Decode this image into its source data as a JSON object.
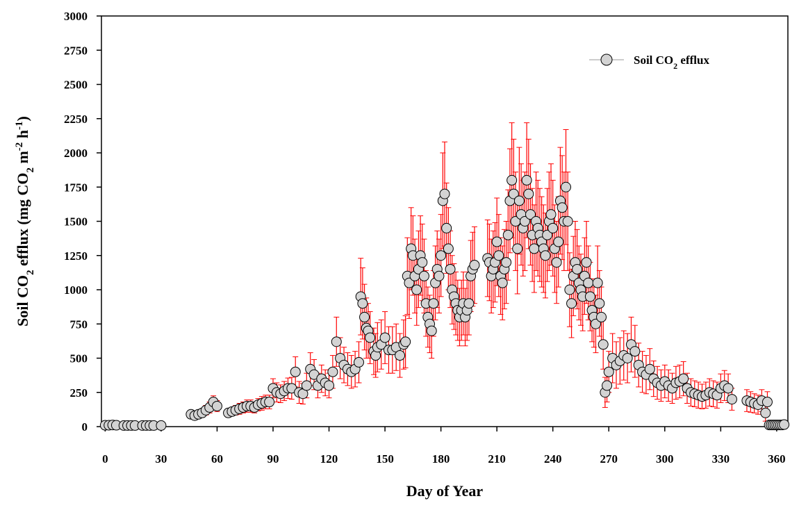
{
  "chart_data": {
    "type": "scatter",
    "title": "",
    "xlabel": "Day of Year",
    "ylabel": {
      "parts": [
        {
          "t": "Soil CO"
        },
        {
          "t": "2",
          "sub": true
        },
        {
          "t": " efflux (mg CO"
        },
        {
          "t": "2",
          "sub": true
        },
        {
          "t": " m"
        },
        {
          "t": "-2",
          "sup": true
        },
        {
          "t": " h"
        },
        {
          "t": "-1",
          "sup": true
        },
        {
          "t": ")"
        }
      ]
    },
    "xlim": [
      -2,
      366
    ],
    "ylim": [
      0,
      3000
    ],
    "xticks": [
      0,
      30,
      60,
      90,
      120,
      150,
      180,
      210,
      240,
      270,
      300,
      330,
      360
    ],
    "yticks": [
      0,
      250,
      500,
      750,
      1000,
      1250,
      1500,
      1750,
      2000,
      2250,
      2500,
      2750,
      3000
    ],
    "grid": false,
    "legend": {
      "placement": "top-right",
      "entries": [
        {
          "parts": [
            {
              "t": "Soil CO"
            },
            {
              "t": "2",
              "sub": true
            },
            {
              "t": " efflux"
            }
          ]
        }
      ]
    },
    "colors": {
      "marker_fill": "#d3d3d3",
      "marker_edge": "#000000",
      "error_bar": "#ff0000"
    },
    "series": [
      {
        "name": "Soil CO2 efflux",
        "x": [
          0,
          2,
          4,
          6,
          10,
          12,
          14,
          16,
          20,
          22,
          24,
          26,
          30,
          46,
          48,
          50,
          52,
          54,
          56,
          58,
          60,
          66,
          68,
          70,
          72,
          74,
          76,
          78,
          80,
          82,
          84,
          86,
          88,
          90,
          92,
          94,
          96,
          98,
          100,
          102,
          104,
          106,
          108,
          110,
          112,
          114,
          116,
          118,
          120,
          122,
          124,
          126,
          128,
          130,
          132,
          134,
          136,
          137,
          138,
          139,
          140,
          141,
          142,
          144,
          145,
          146,
          148,
          150,
          152,
          154,
          156,
          158,
          160,
          161,
          162,
          163,
          164,
          165,
          166,
          167,
          168,
          169,
          170,
          171,
          172,
          173,
          174,
          175,
          176,
          177,
          178,
          179,
          180,
          181,
          182,
          183,
          184,
          185,
          186,
          187,
          188,
          189,
          190,
          191,
          192,
          193,
          194,
          195,
          196,
          197,
          198,
          205,
          206,
          207,
          208,
          209,
          210,
          211,
          212,
          213,
          214,
          215,
          216,
          217,
          218,
          219,
          220,
          221,
          222,
          223,
          224,
          225,
          226,
          227,
          228,
          229,
          230,
          231,
          232,
          233,
          234,
          235,
          236,
          237,
          238,
          239,
          240,
          241,
          242,
          243,
          244,
          245,
          246,
          247,
          248,
          249,
          250,
          251,
          252,
          253,
          254,
          255,
          256,
          257,
          258,
          259,
          260,
          261,
          262,
          263,
          264,
          265,
          266,
          267,
          268,
          269,
          270,
          272,
          274,
          276,
          278,
          280,
          282,
          284,
          286,
          288,
          290,
          292,
          294,
          296,
          298,
          300,
          302,
          304,
          306,
          308,
          310,
          312,
          314,
          316,
          318,
          320,
          322,
          324,
          326,
          328,
          330,
          332,
          334,
          336,
          344,
          346,
          348,
          350,
          352,
          354,
          355,
          356,
          357,
          358,
          359,
          360,
          361,
          362,
          363,
          364
        ],
        "y": [
          10,
          10,
          12,
          10,
          8,
          8,
          8,
          8,
          8,
          8,
          8,
          8,
          8,
          90,
          80,
          90,
          100,
          120,
          140,
          180,
          150,
          100,
          110,
          120,
          130,
          140,
          150,
          150,
          140,
          160,
          170,
          180,
          180,
          280,
          250,
          240,
          260,
          280,
          280,
          400,
          250,
          240,
          300,
          420,
          380,
          300,
          350,
          320,
          300,
          400,
          620,
          500,
          450,
          420,
          400,
          420,
          470,
          950,
          900,
          800,
          720,
          700,
          650,
          550,
          520,
          580,
          600,
          650,
          560,
          560,
          580,
          520,
          600,
          620,
          1100,
          1050,
          1300,
          1250,
          1100,
          1000,
          1150,
          1250,
          1200,
          1100,
          900,
          800,
          750,
          700,
          900,
          1050,
          1150,
          1100,
          1250,
          1650,
          1700,
          1450,
          1300,
          1150,
          1000,
          950,
          900,
          850,
          800,
          850,
          900,
          800,
          850,
          900,
          1100,
          1150,
          1180,
          1230,
          1200,
          1100,
          1150,
          1200,
          1350,
          1250,
          1100,
          1050,
          1150,
          1200,
          1400,
          1650,
          1800,
          1700,
          1500,
          1300,
          1650,
          1550,
          1450,
          1500,
          1800,
          1700,
          1550,
          1400,
          1300,
          1500,
          1450,
          1400,
          1350,
          1300,
          1250,
          1400,
          1500,
          1550,
          1450,
          1300,
          1200,
          1350,
          1650,
          1600,
          1500,
          1750,
          1500,
          1000,
          900,
          1100,
          1200,
          1150,
          1050,
          1000,
          950,
          1100,
          1200,
          1050,
          950,
          850,
          800,
          750,
          1050,
          900,
          800,
          600,
          250,
          300,
          400,
          500,
          450,
          480,
          520,
          500,
          600,
          550,
          450,
          400,
          380,
          420,
          350,
          320,
          300,
          330,
          300,
          280,
          320,
          330,
          350,
          280,
          250,
          240,
          230,
          220,
          230,
          250,
          240,
          230,
          280,
          300,
          280,
          200,
          190,
          180,
          170,
          160,
          190,
          100,
          180,
          12,
          12,
          12,
          12,
          12,
          12,
          12,
          12,
          15
        ],
        "err": [
          5,
          5,
          5,
          5,
          5,
          5,
          5,
          5,
          5,
          5,
          5,
          5,
          5,
          25,
          25,
          25,
          30,
          35,
          40,
          45,
          40,
          30,
          30,
          35,
          40,
          40,
          45,
          45,
          40,
          45,
          50,
          50,
          50,
          70,
          70,
          65,
          70,
          75,
          80,
          110,
          80,
          75,
          90,
          120,
          110,
          90,
          100,
          95,
          90,
          120,
          180,
          150,
          130,
          120,
          120,
          130,
          150,
          280,
          260,
          240,
          220,
          200,
          190,
          170,
          160,
          180,
          180,
          190,
          170,
          170,
          170,
          160,
          180,
          190,
          280,
          260,
          300,
          290,
          270,
          260,
          280,
          290,
          280,
          270,
          240,
          220,
          210,
          200,
          240,
          270,
          280,
          270,
          300,
          350,
          380,
          330,
          300,
          280,
          250,
          240,
          230,
          220,
          210,
          220,
          230,
          210,
          220,
          230,
          260,
          270,
          280,
          280,
          280,
          270,
          280,
          290,
          320,
          300,
          280,
          270,
          290,
          300,
          330,
          380,
          420,
          400,
          360,
          330,
          390,
          370,
          350,
          360,
          420,
          400,
          370,
          340,
          320,
          360,
          350,
          340,
          330,
          320,
          310,
          340,
          360,
          370,
          350,
          320,
          300,
          330,
          390,
          380,
          360,
          420,
          360,
          270,
          250,
          290,
          300,
          290,
          270,
          260,
          250,
          280,
          300,
          270,
          250,
          230,
          220,
          210,
          270,
          240,
          220,
          180,
          110,
          120,
          150,
          180,
          170,
          170,
          180,
          180,
          200,
          190,
          160,
          150,
          140,
          150,
          130,
          120,
          115,
          120,
          115,
          110,
          120,
          120,
          125,
          110,
          100,
          95,
          95,
          90,
          95,
          100,
          95,
          95,
          105,
          110,
          105,
          80,
          80,
          75,
          70,
          70,
          80,
          60,
          75,
          6,
          6,
          6,
          6,
          6,
          6,
          6,
          6,
          6
        ]
      }
    ]
  }
}
